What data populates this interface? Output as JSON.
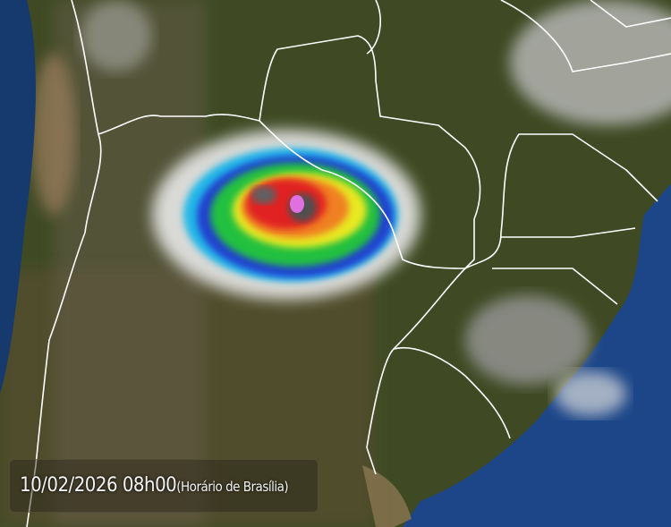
{
  "timestamp": {
    "datetime": "10/02/2026 08h00",
    "timezone": "(Horário de Brasília)"
  },
  "colors": {
    "ocean": "#1b3f7a",
    "land": "#3d4a22",
    "borders": "#ffffff",
    "storm_scale": [
      "#ffffff",
      "#00c8ff",
      "#1a3cff",
      "#18d040",
      "#f0f020",
      "#ff2020",
      "#e060e0"
    ]
  }
}
